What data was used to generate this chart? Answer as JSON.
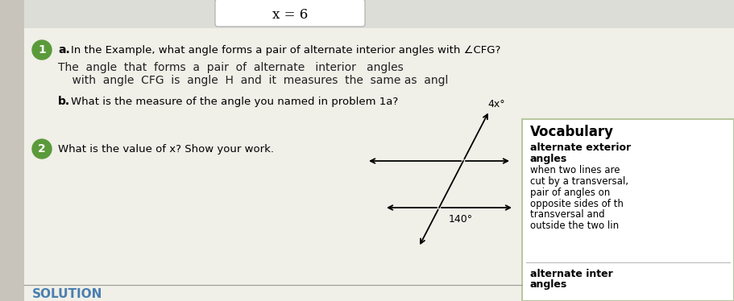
{
  "bg_color": "#c8c4bc",
  "page_bg": "#f0efe8",
  "title_top": "x = 6",
  "q1_circle_color": "#5a9a3a",
  "q2_circle_color": "#5a9a3a",
  "q1_label": "1",
  "q2_label": "2",
  "q1a_text": "a.  In the Example, what angle forms a pair of alternate interior angles with ∠CFG?",
  "q1a_handwritten_line1": "The  angle  that  forms  a  pair  of  alternate   interior   angles",
  "q1a_handwritten_line2": "    with  angle  CFG  is  angle  H  and  it  measures  the  same as  angl",
  "q1b_text": "b.  What is the measure of the angle you named in problem 1a?",
  "q2_text": "What is the value of x? Show your work.",
  "vocab_title": "Vocabulary",
  "vocab_bold1": "alternate exterior",
  "vocab_bold2": "angles",
  "vocab_body1": "when two lines are",
  "vocab_body2": "cut by a transversal,",
  "vocab_body3": "pair of angles on",
  "vocab_body4": "opposite sides of th",
  "vocab_body5": "transversal and",
  "vocab_body6": "outside the two lin",
  "vocab_bold3": "alternate inter",
  "vocab_bold4": "angles",
  "solution_text": "SOLUTION",
  "angle1_label": "4x°",
  "angle2_label": "140°",
  "vocab_bg": "#ffffff",
  "vocab_border": "#b8c8a0",
  "solution_line_color": "#999999",
  "circle_text_color": "#ffffff",
  "solution_color": "#4a7fb0",
  "handwritten_color": "#222222"
}
